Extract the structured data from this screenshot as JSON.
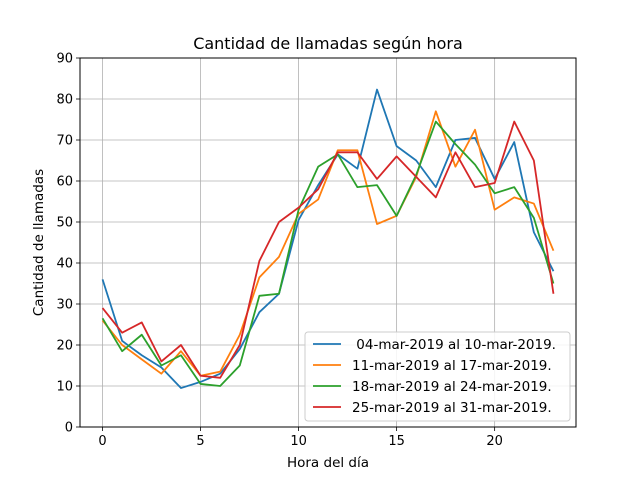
{
  "chart_data": {
    "type": "line",
    "title": "Cantidad de llamadas según hora",
    "xlabel": "Hora del día",
    "ylabel": "Cantidad de llamadas",
    "xlim": [
      -1.15,
      24.15
    ],
    "ylim": [
      0,
      90
    ],
    "xticks": [
      0,
      5,
      10,
      15,
      20
    ],
    "yticks": [
      0,
      10,
      20,
      30,
      40,
      50,
      60,
      70,
      80,
      90
    ],
    "grid": true,
    "legend_position": "lower-right",
    "x": [
      0,
      1,
      2,
      3,
      4,
      5,
      6,
      7,
      8,
      9,
      10,
      11,
      12,
      13,
      14,
      15,
      16,
      17,
      18,
      19,
      20,
      21,
      22,
      23
    ],
    "series": [
      {
        "name": " 04-mar-2019 al 10-mar-2019.",
        "color": "#1f77b4",
        "values": [
          36,
          21,
          17.5,
          14.5,
          9.5,
          11,
          13,
          19,
          28,
          32.5,
          50.5,
          59,
          66.5,
          63,
          82.3,
          68.5,
          65,
          58.5,
          70,
          70.5,
          60.5,
          69.5,
          47.5,
          38
        ]
      },
      {
        "name": "11-mar-2019 al 17-mar-2019.",
        "color": "#ff7f0e",
        "values": [
          26,
          20,
          16.5,
          13,
          18.5,
          12.5,
          13.5,
          22.5,
          36.5,
          41.5,
          52,
          55.5,
          67.5,
          67.5,
          49.5,
          51.5,
          61,
          77,
          63.5,
          72.5,
          53,
          56,
          54.5,
          43
        ]
      },
      {
        "name": "18-mar-2019 al 24-mar-2019.",
        "color": "#2ca02c",
        "values": [
          26.5,
          18.5,
          22.5,
          15,
          17.5,
          10.5,
          10,
          15,
          32,
          32.5,
          53,
          63.5,
          66.5,
          58.5,
          59,
          51.5,
          61.5,
          74.5,
          69,
          64,
          57,
          58.5,
          51,
          35
        ]
      },
      {
        "name": "25-mar-2019 al 31-mar-2019.",
        "color": "#d62728",
        "values": [
          29,
          23,
          25.5,
          16,
          20,
          12.5,
          12,
          20,
          40.5,
          50,
          53.5,
          58,
          67,
          67,
          60.5,
          66,
          61,
          56,
          67,
          58.5,
          59.5,
          74.5,
          65,
          32.5
        ]
      }
    ]
  }
}
